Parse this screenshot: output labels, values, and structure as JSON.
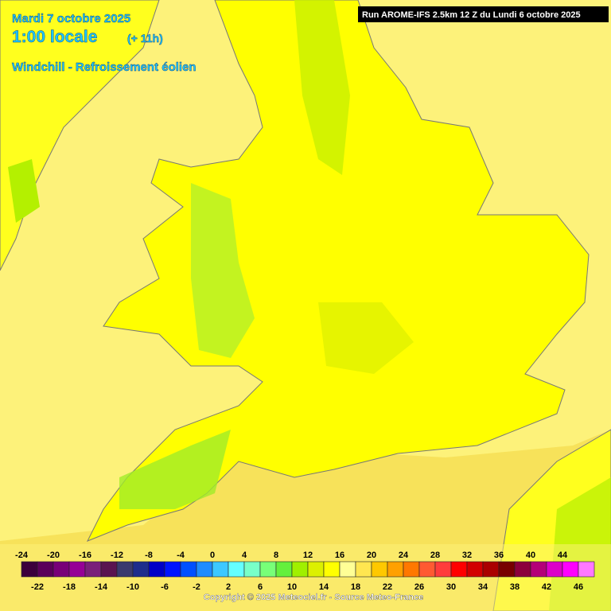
{
  "header": {
    "date": "Mardi 7 octobre 2025",
    "time": "1:00 locale",
    "offset": "(+ 11h)",
    "parameter": "Windchill - Refroissement éolien",
    "run": "Run AROME-IFS 2.5km 12 Z du Lundi 6 octobre 2025"
  },
  "legend": {
    "ticks": [
      -24,
      -22,
      -20,
      -18,
      -16,
      -14,
      -12,
      -10,
      -8,
      -6,
      -4,
      -2,
      0,
      2,
      4,
      6,
      8,
      10,
      12,
      14,
      16,
      18,
      20,
      22,
      24,
      26,
      28,
      30,
      32,
      34,
      36,
      38,
      40,
      42,
      44,
      46
    ],
    "colors": [
      "#3c003c",
      "#5a005a",
      "#780078",
      "#960096",
      "#7a1f7a",
      "#5a1450",
      "#3a3a6e",
      "#1e2d8c",
      "#0000c8",
      "#0014ff",
      "#0050ff",
      "#1e8cff",
      "#3cc8ff",
      "#64ffff",
      "#78ffc8",
      "#78ff78",
      "#64f03c",
      "#a0f000",
      "#dcf000",
      "#ffff00",
      "#ffff96",
      "#ffe650",
      "#ffc800",
      "#ffa000",
      "#ff7800",
      "#ff5a32",
      "#ff3c3c",
      "#ff0000",
      "#d20000",
      "#aa0000",
      "#780000",
      "#8c003c",
      "#b40078",
      "#dc00c8",
      "#ff00ff",
      "#ff78ff"
    ]
  },
  "footer": {
    "copyright": "Copyright © 2025 Meteociel.fr - Source Meteo-France"
  }
}
